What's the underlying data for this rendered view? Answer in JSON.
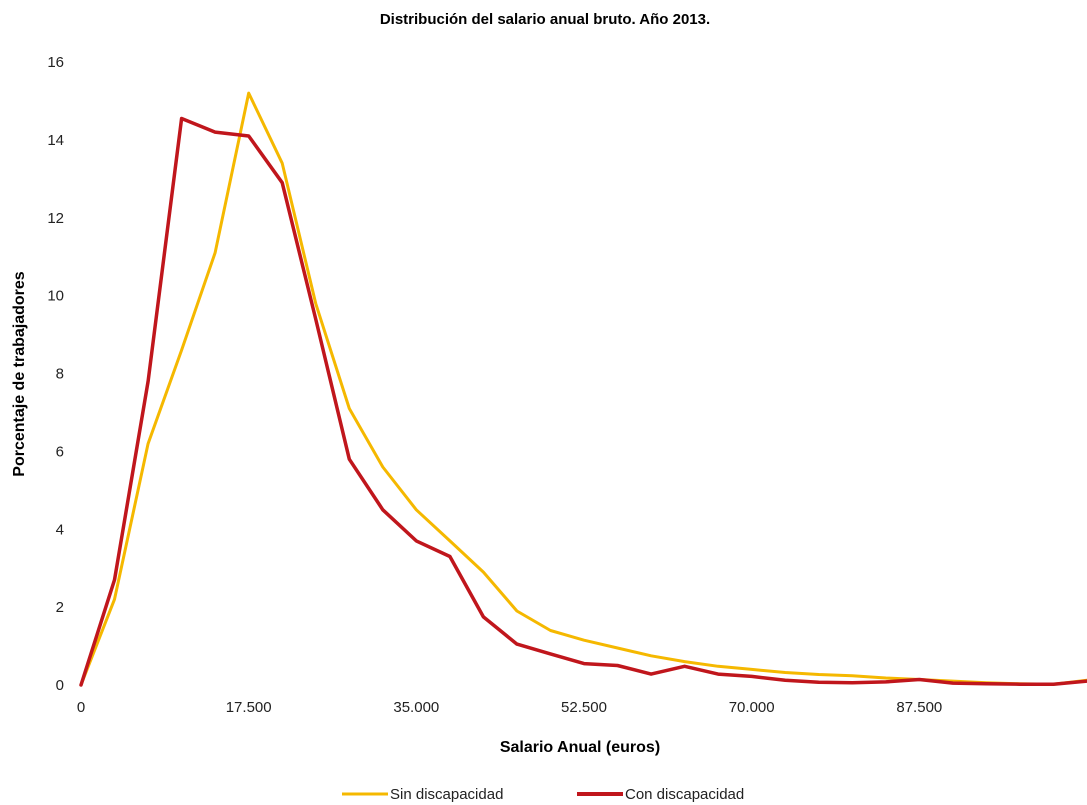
{
  "chart_data": {
    "type": "line",
    "title": "Distribución del salario anual bruto. Año 2013.",
    "xlabel": "Salario Anual (euros)",
    "ylabel": "Porcentaje de trabajadores",
    "xlim": [
      0,
      105000
    ],
    "ylim": [
      0,
      16
    ],
    "x_ticks": [
      0,
      17500,
      35000,
      52500,
      70000,
      87500
    ],
    "x_tick_labels": [
      "0",
      "17.500",
      "35.000",
      "52.500",
      "70.000",
      "87.500"
    ],
    "y_ticks": [
      0,
      2,
      4,
      6,
      8,
      10,
      12,
      14,
      16
    ],
    "y_tick_labels": [
      "0",
      "2",
      "4",
      "6",
      "8",
      "10",
      "12",
      "14",
      "16"
    ],
    "grid": false,
    "legend_position": "bottom",
    "x": [
      0,
      3500,
      7000,
      10500,
      14000,
      17500,
      21000,
      24500,
      28000,
      31500,
      35000,
      38500,
      42000,
      45500,
      49000,
      52500,
      56000,
      59500,
      63000,
      66500,
      70000,
      73500,
      77000,
      80500,
      84000,
      87500,
      91000,
      94500,
      98000,
      101500,
      105000
    ],
    "series": [
      {
        "name": "Sin discapacidad",
        "color": "#F5B800",
        "values": [
          0.0,
          2.2,
          6.2,
          8.6,
          11.1,
          15.2,
          13.4,
          9.8,
          7.1,
          5.6,
          4.5,
          3.7,
          2.9,
          1.9,
          1.4,
          1.15,
          0.95,
          0.75,
          0.6,
          0.48,
          0.4,
          0.32,
          0.27,
          0.24,
          0.18,
          0.14,
          0.1,
          0.06,
          0.03,
          0.02,
          0.12
        ]
      },
      {
        "name": "Con discapacidad",
        "color": "#C0161C",
        "values": [
          0.0,
          2.7,
          7.8,
          14.55,
          14.2,
          14.1,
          12.9,
          9.4,
          5.8,
          4.5,
          3.7,
          3.3,
          1.75,
          1.05,
          0.8,
          0.55,
          0.5,
          0.28,
          0.48,
          0.28,
          0.22,
          0.12,
          0.07,
          0.06,
          0.08,
          0.14,
          0.05,
          0.03,
          0.02,
          0.02,
          0.1
        ]
      }
    ]
  }
}
